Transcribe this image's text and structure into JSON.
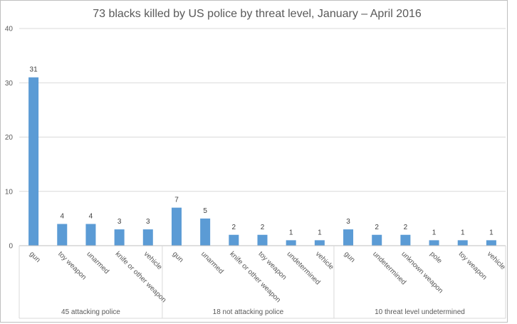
{
  "chart_data": {
    "type": "bar",
    "title": "73 blacks killed by US police by threat level, January – April 2016",
    "xlabel": "",
    "ylabel": "",
    "ylim": [
      0,
      40
    ],
    "yticks": [
      0,
      10,
      20,
      30,
      40
    ],
    "grid": true,
    "bar_color": "#5b9bd5",
    "groups": [
      {
        "label": "45 attacking police",
        "categories": [
          "gun",
          "toy weapon",
          "unarmed",
          "knife or other weapon",
          "vehicle"
        ],
        "values": [
          31,
          4,
          4,
          3,
          3
        ]
      },
      {
        "label": "18 not attacking police",
        "categories": [
          "gun",
          "unarmed",
          "knife or other weapon",
          "toy weapon",
          "undetermined",
          "vehicle"
        ],
        "values": [
          7,
          5,
          2,
          2,
          1,
          1
        ]
      },
      {
        "label": "10 threat level undetermined",
        "categories": [
          "gun",
          "undetermined",
          "unknown weapon",
          "pole",
          "toy weapon",
          "vehicle"
        ],
        "values": [
          3,
          2,
          2,
          1,
          1,
          1
        ]
      }
    ]
  }
}
